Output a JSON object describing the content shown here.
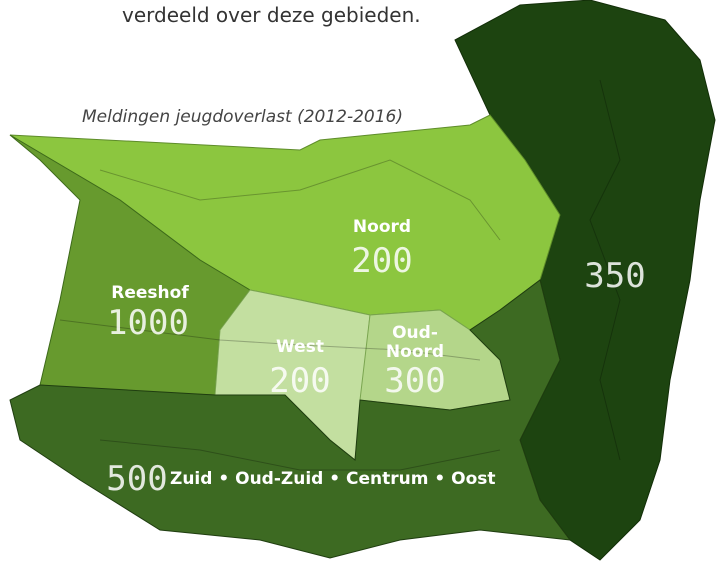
{
  "intro": "verdeeld over deze gebieden.",
  "caption": "Meldingen jeugdoverlast (2012-2016)",
  "regions": [
    {
      "name": "Noord",
      "value": 200
    },
    {
      "name": "Reeshof",
      "value": 1000
    },
    {
      "name": "West",
      "value": 200
    },
    {
      "name_lines": [
        "Oud-",
        "Noord"
      ],
      "value": 300
    },
    {
      "value": 350
    },
    {
      "name": "Zuid • Oud-Zuid • Centrum • Oost",
      "value": 500
    }
  ]
}
